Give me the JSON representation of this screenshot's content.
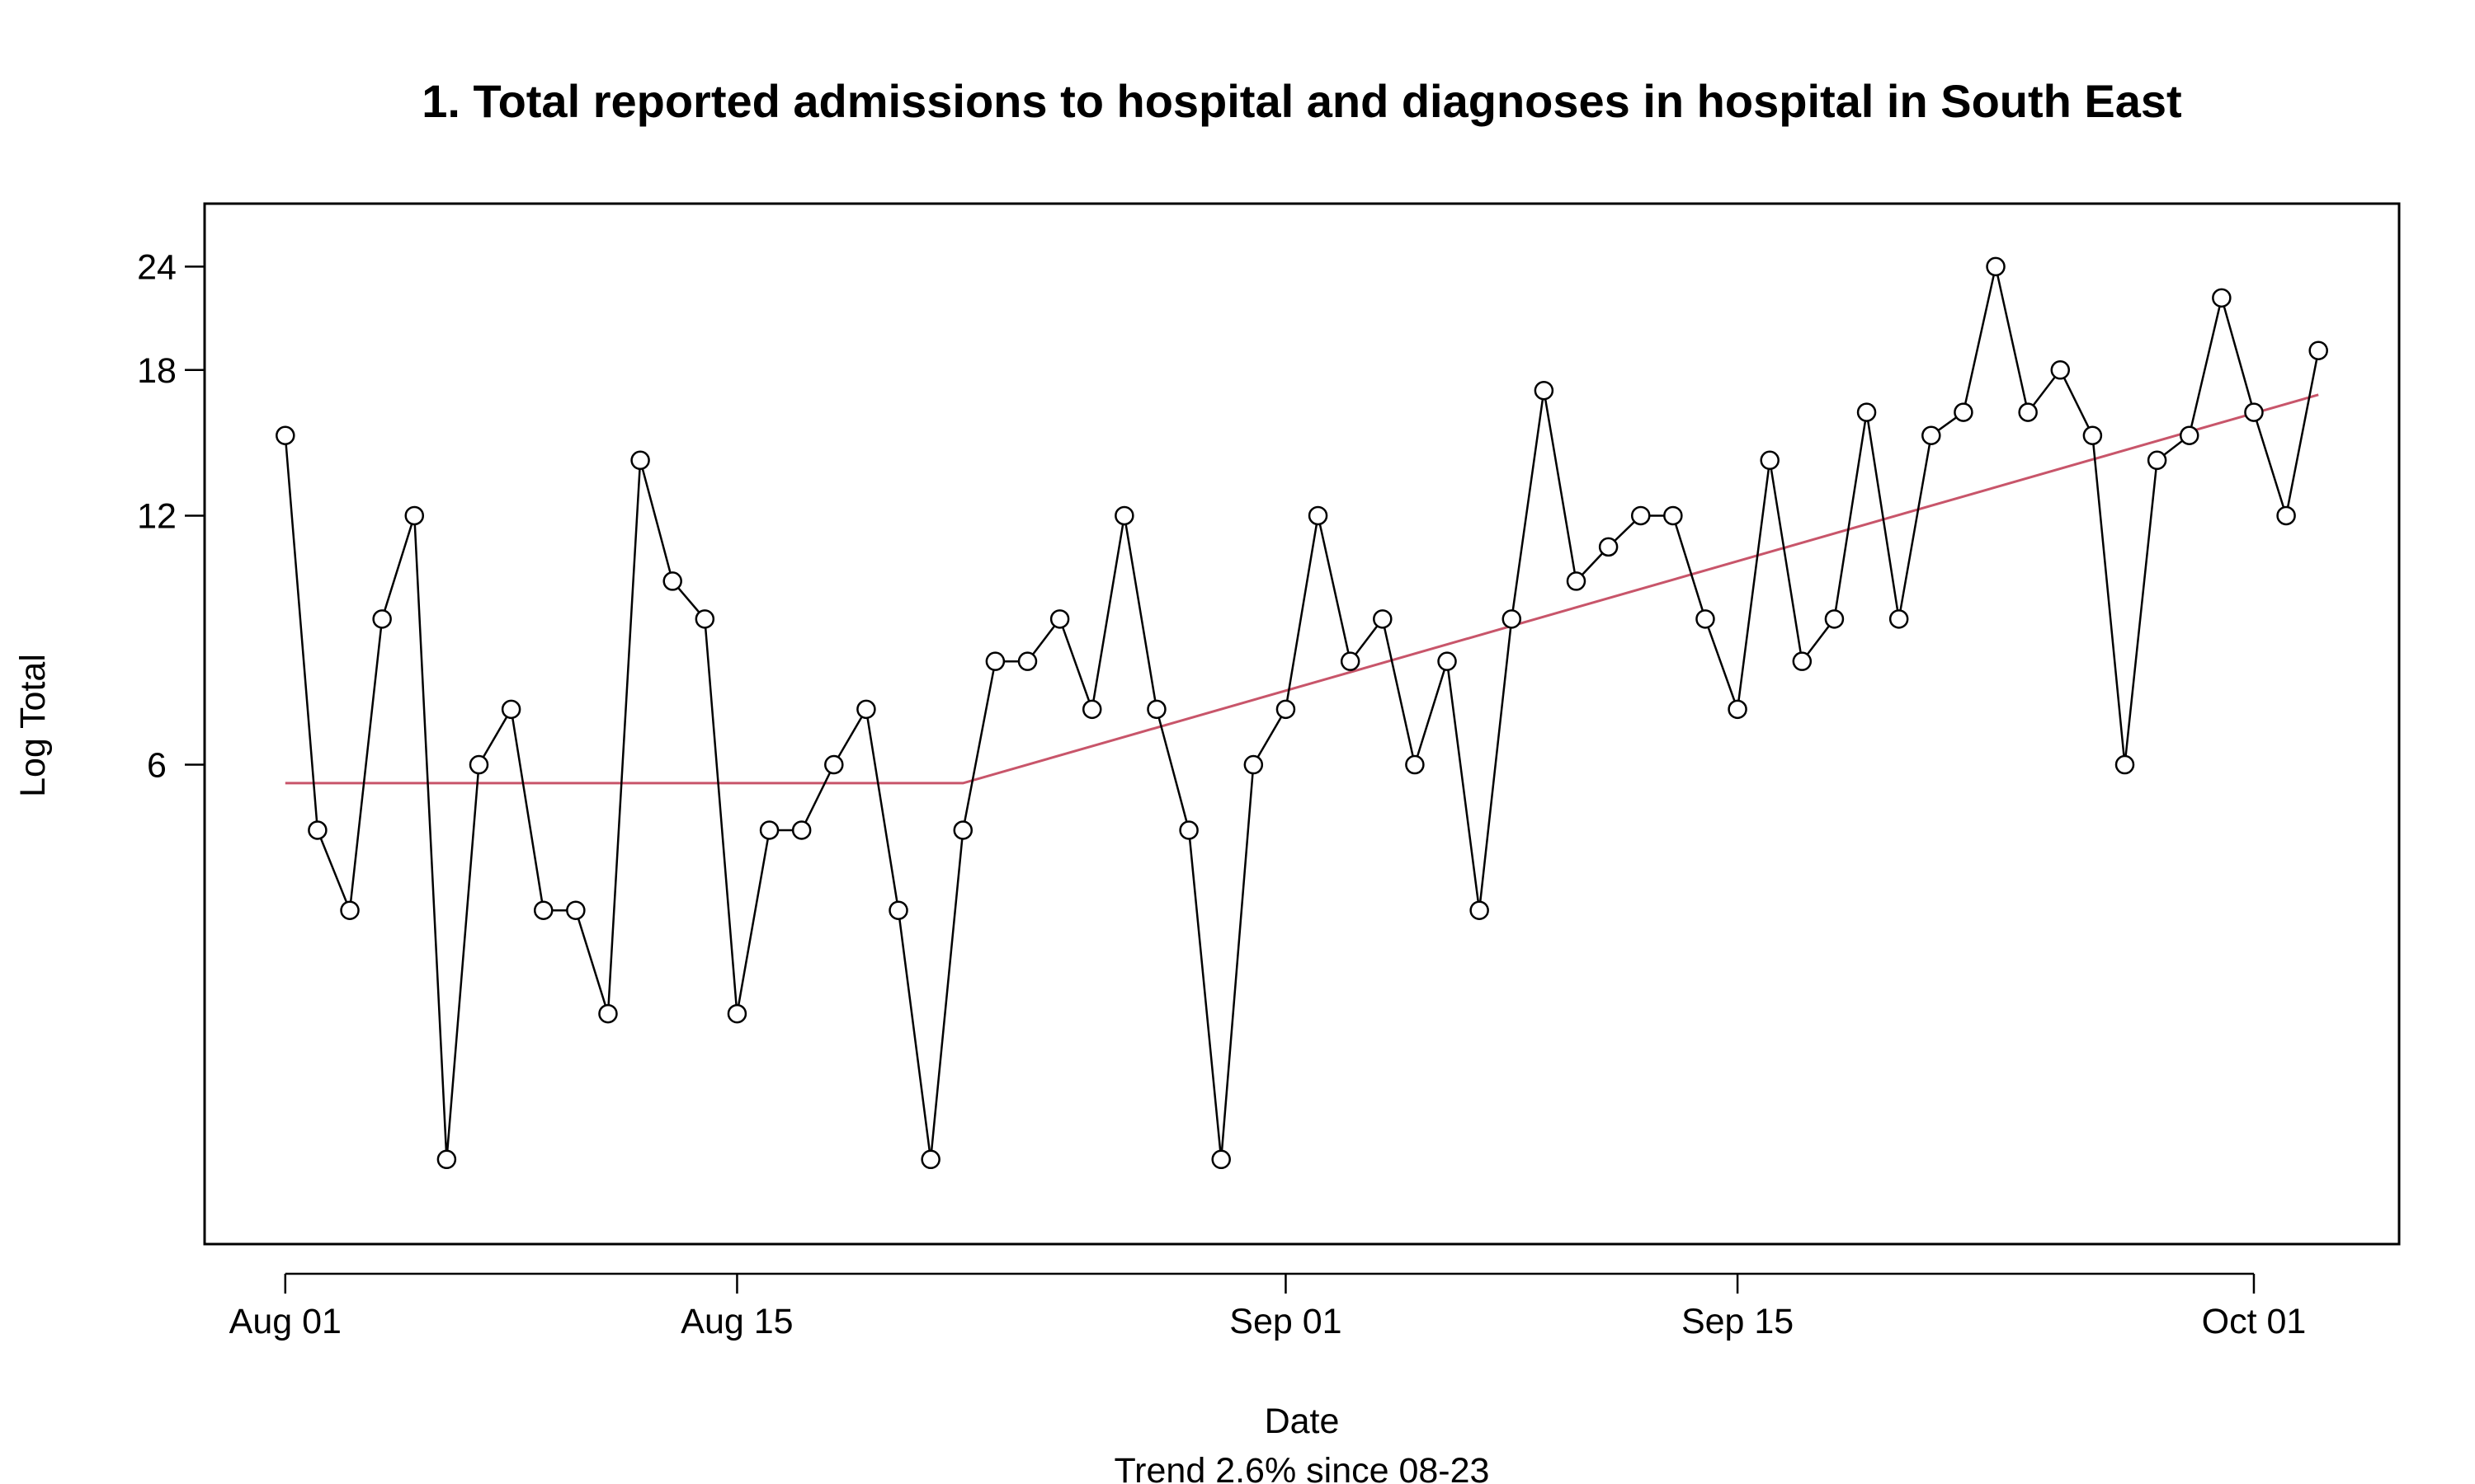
{
  "chart_data": {
    "type": "line",
    "scale": "log",
    "title": "1. Total reported admissions to hospital and diagnoses in hospital in South East",
    "xlabel": "Date",
    "ylabel": "Log Total",
    "subtitle": "Trend 2.6% since 08-23",
    "x_start": "2020-08-01",
    "x_ticks": [
      {
        "label": "Aug 01",
        "day": 0
      },
      {
        "label": "Aug 15",
        "day": 14
      },
      {
        "label": "Sep 01",
        "day": 31
      },
      {
        "label": "Sep 15",
        "day": 45
      },
      {
        "label": "Oct 01",
        "day": 61
      }
    ],
    "y_ticks": [
      6,
      12,
      18,
      24
    ],
    "ylim": [
      1.58,
      28.6
    ],
    "xlim": [
      -2.5,
      65.5
    ],
    "series": [
      {
        "name": "Total",
        "values": [
          15,
          5,
          4,
          9,
          12,
          2,
          6,
          7,
          4,
          4,
          3,
          14,
          10,
          9,
          3,
          5,
          5,
          6,
          7,
          4,
          2,
          5,
          8,
          8,
          9,
          7,
          12,
          7,
          5,
          2,
          6,
          7,
          12,
          8,
          9,
          6,
          8,
          4,
          9,
          17,
          10,
          11,
          12,
          12,
          9,
          7,
          14,
          8,
          9,
          16,
          9,
          15,
          16,
          24,
          16,
          18,
          15,
          6,
          14,
          15,
          22,
          16,
          12,
          19
        ]
      },
      {
        "name": "Trend",
        "color": "#C8556A",
        "points": [
          {
            "day": 0,
            "value": 5.7
          },
          {
            "day": 21,
            "value": 5.7
          },
          {
            "day": 63,
            "value": 16.8
          }
        ]
      }
    ]
  }
}
